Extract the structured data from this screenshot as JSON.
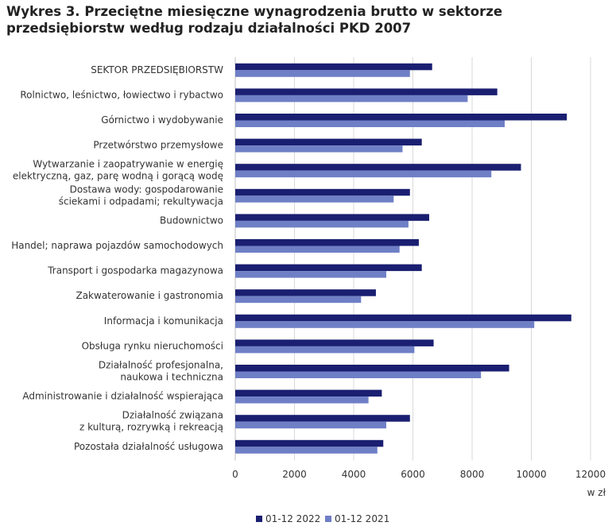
{
  "chart_data": {
    "type": "bar",
    "orientation": "horizontal",
    "title": "Wykres 3. Przeciętne miesięczne wynagrodzenia brutto w sektorze przedsiębiorstw według rodzaju działalności PKD 2007",
    "unit_label": "w zł",
    "xlim": [
      0,
      12000
    ],
    "x_ticks": [
      "0",
      "2000",
      "4000",
      "6000",
      "8000",
      "10000",
      "12000"
    ],
    "grid": true,
    "legend_position": "bottom",
    "categories": [
      [
        "SEKTOR PRZEDSIĘBIORSTW"
      ],
      [
        "Rolnictwo, leśnictwo, łowiectwo i rybactwo"
      ],
      [
        "Górnictwo i wydobywanie"
      ],
      [
        "Przetwórstwo przemysłowe"
      ],
      [
        "Wytwarzanie i zaopatrywanie w energię",
        "elektryczną, gaz, parę wodną i gorącą wodę"
      ],
      [
        "Dostawa wody: gospodarowanie",
        "ściekami i odpadami; rekultywacja"
      ],
      [
        "Budownictwo"
      ],
      [
        "Handel; naprawa pojazdów samochodowych"
      ],
      [
        "Transport i gospodarka magazynowa"
      ],
      [
        "Zakwaterowanie i gastronomia"
      ],
      [
        "Informacja i komunikacja"
      ],
      [
        "Obsługa rynku nieruchomości"
      ],
      [
        "Działalność profesjonalna,",
        "naukowa i techniczna"
      ],
      [
        "Administrowanie i działalność wspierająca"
      ],
      [
        "Działalność związana",
        "z kulturą, rozrywką i rekreacją"
      ],
      [
        "Pozostała działalność usługowa"
      ]
    ],
    "series": [
      {
        "name": "01-12 2022",
        "color": "#1a1f71",
        "values": [
          6650,
          8850,
          11200,
          6300,
          9650,
          5900,
          6550,
          6200,
          6300,
          4750,
          11350,
          6700,
          9250,
          4950,
          5900,
          5000
        ]
      },
      {
        "name": "01-12 2021",
        "color": "#6f7fc6",
        "values": [
          5900,
          7850,
          9100,
          5650,
          8650,
          5350,
          5850,
          5550,
          5100,
          4250,
          10100,
          6050,
          8300,
          4500,
          5100,
          4800
        ]
      }
    ]
  }
}
